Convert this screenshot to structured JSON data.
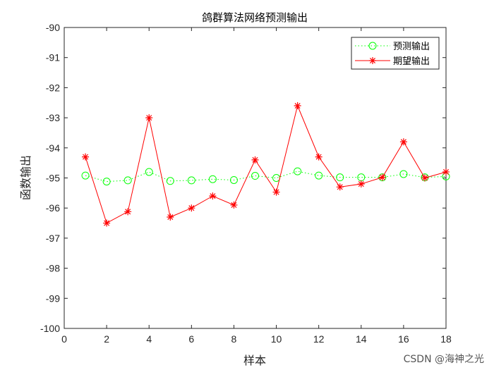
{
  "chart_data": {
    "type": "line",
    "title": "鸽群算法网络预测输出",
    "xlabel": "样本",
    "ylabel": "函数输出",
    "xlim": [
      0,
      18
    ],
    "ylim": [
      -100,
      -90
    ],
    "xticks": [
      0,
      2,
      4,
      6,
      8,
      10,
      12,
      14,
      16,
      18
    ],
    "yticks": [
      -90,
      -91,
      -92,
      -93,
      -94,
      -95,
      -96,
      -97,
      -98,
      -99,
      -100
    ],
    "grid": false,
    "legend_position": "top-right",
    "x": [
      1,
      2,
      3,
      4,
      5,
      6,
      7,
      8,
      9,
      10,
      11,
      12,
      13,
      14,
      15,
      16,
      17,
      18
    ],
    "series": [
      {
        "name": "预测输出",
        "color": "#00ff00",
        "marker": "circle",
        "linestyle": "dotted",
        "values": [
          -94.92,
          -95.12,
          -95.08,
          -94.8,
          -95.1,
          -95.08,
          -95.04,
          -95.07,
          -94.93,
          -95.0,
          -94.78,
          -94.92,
          -94.98,
          -94.98,
          -94.98,
          -94.87,
          -94.98,
          -94.95
        ]
      },
      {
        "name": "期望输出",
        "color": "#ff0000",
        "marker": "star",
        "linestyle": "solid",
        "values": [
          -94.3,
          -96.5,
          -96.12,
          -93.0,
          -96.3,
          -96.0,
          -95.6,
          -95.9,
          -94.4,
          -95.47,
          -92.6,
          -94.3,
          -95.3,
          -95.2,
          -94.98,
          -93.8,
          -95.0,
          -94.8
        ]
      }
    ]
  },
  "watermark": "CSDN @海神之光"
}
